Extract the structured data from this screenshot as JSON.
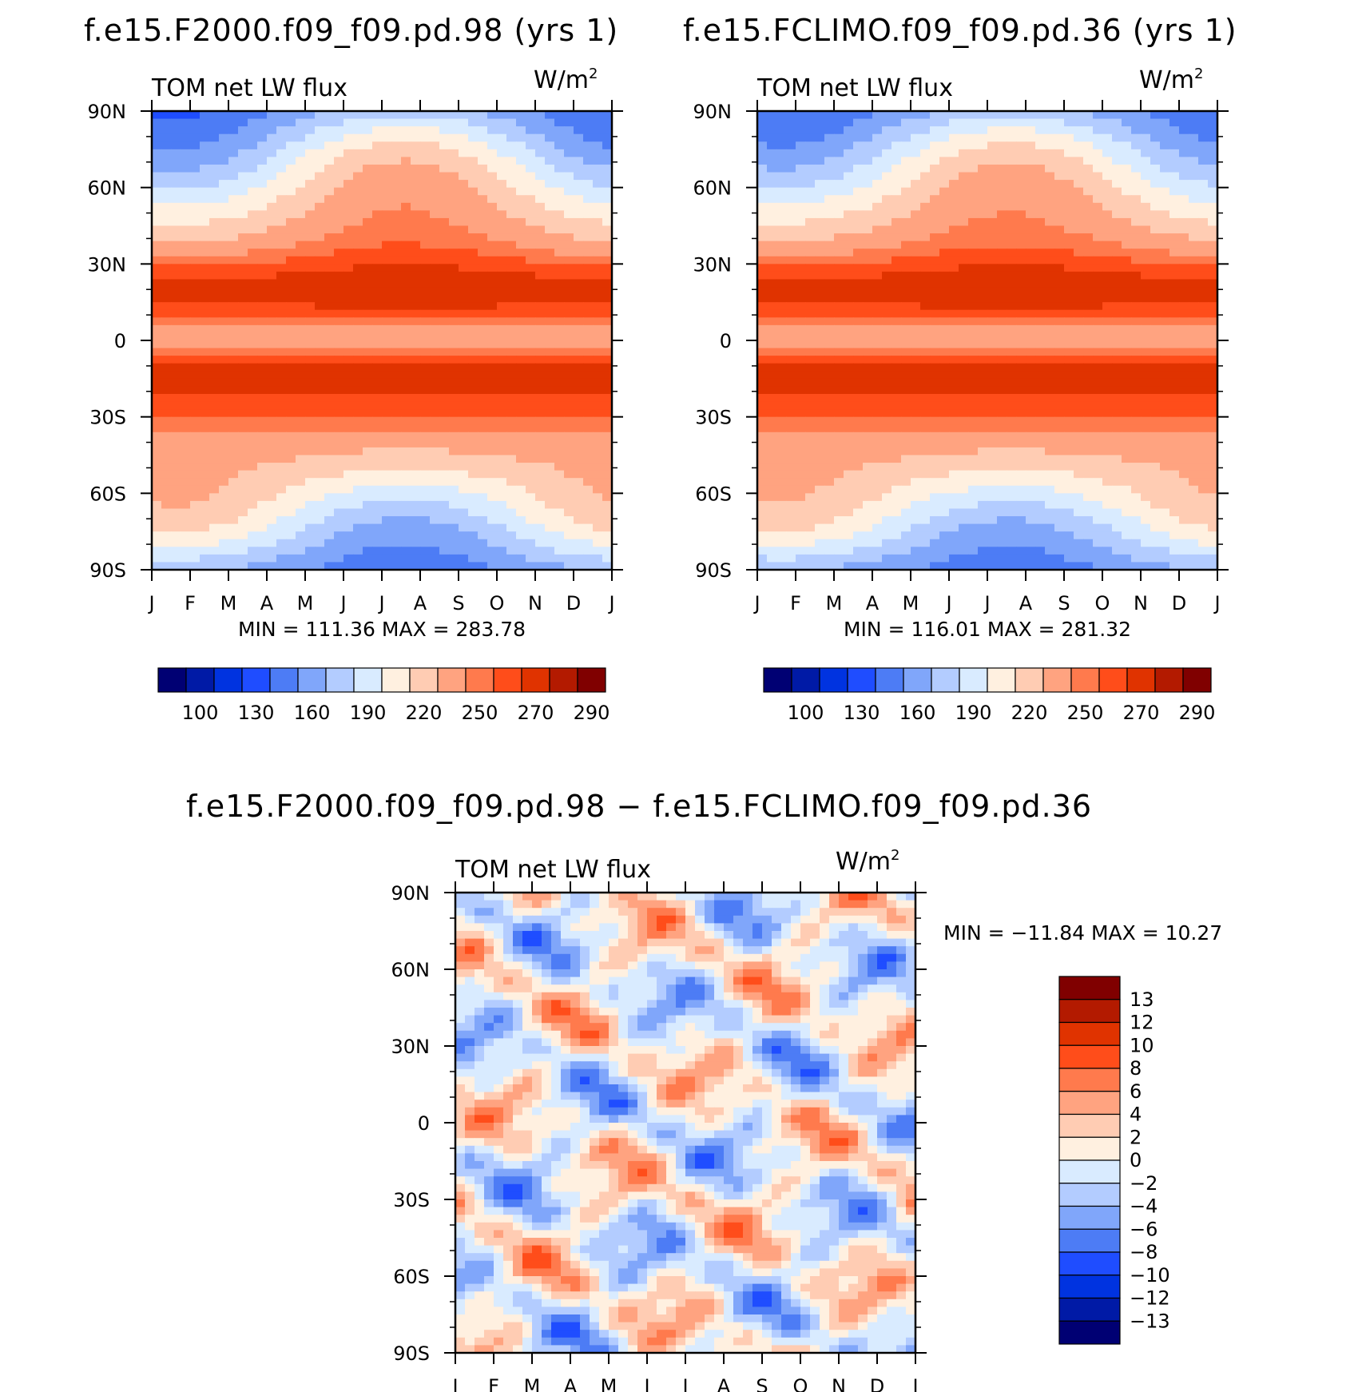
{
  "colors": {
    "absolute_levels": [
      "#000073",
      "#001aa6",
      "#0033e0",
      "#1f4dff",
      "#4d7cf5",
      "#80a6fa",
      "#b3ccff",
      "#d9ebff",
      "#fff0e0",
      "#ffccb3",
      "#ffa380",
      "#ff7a4d",
      "#ff4d1a",
      "#e03300",
      "#b31a00",
      "#800000"
    ],
    "diff_levels": [
      "#000073",
      "#001aa6",
      "#0033e0",
      "#1f4dff",
      "#4d7cf5",
      "#80a6fa",
      "#b3ccff",
      "#d9ebff",
      "#fff0e0",
      "#ffccb3",
      "#ffa380",
      "#ff7a4d",
      "#ff4d1a",
      "#e03300",
      "#b31a00",
      "#800000"
    ]
  },
  "chart_data": [
    {
      "type": "heatmap",
      "panel": "top-left",
      "title": "f.e15.F2000.f09_f09.pd.98 (yrs  1)",
      "left_label": "TOM net LW flux",
      "units_base": "W/m",
      "units_exp": "2",
      "x_ticks": [
        "J",
        "F",
        "M",
        "A",
        "M",
        "J",
        "J",
        "A",
        "S",
        "O",
        "N",
        "D",
        "J"
      ],
      "y_ticks": [
        "90N",
        "60N",
        "30N",
        "0",
        "30S",
        "60S",
        "90S"
      ],
      "ylim": [
        -90,
        90
      ],
      "stats_text": "MIN = 111.36 MAX = 283.78",
      "min": 111.36,
      "max": 283.78,
      "colorbar_labels": [
        "100",
        "130",
        "160",
        "190",
        "220",
        "250",
        "270",
        "290"
      ],
      "seasonal_amp": 1.0
    },
    {
      "type": "heatmap",
      "panel": "top-right",
      "title": "f.e15.FCLIMO.f09_f09.pd.36 (yrs  1)",
      "left_label": "TOM net LW flux",
      "units_base": "W/m",
      "units_exp": "2",
      "x_ticks": [
        "J",
        "F",
        "M",
        "A",
        "M",
        "J",
        "J",
        "A",
        "S",
        "O",
        "N",
        "D",
        "J"
      ],
      "y_ticks": [
        "90N",
        "60N",
        "30N",
        "0",
        "30S",
        "60S",
        "90S"
      ],
      "ylim": [
        -90,
        90
      ],
      "stats_text": "MIN = 116.01 MAX = 281.32",
      "min": 116.01,
      "max": 281.32,
      "colorbar_labels": [
        "100",
        "130",
        "160",
        "190",
        "220",
        "250",
        "270",
        "290"
      ],
      "seasonal_amp": 0.95
    },
    {
      "type": "heatmap",
      "panel": "bottom",
      "title": "f.e15.F2000.f09_f09.pd.98 − f.e15.FCLIMO.f09_f09.pd.36",
      "left_label": "TOM net LW flux",
      "units_base": "W/m",
      "units_exp": "2",
      "x_ticks": [
        "J",
        "F",
        "M",
        "A",
        "M",
        "J",
        "J",
        "A",
        "S",
        "O",
        "N",
        "D",
        "J"
      ],
      "y_ticks": [
        "90N",
        "60N",
        "30N",
        "0",
        "30S",
        "60S",
        "90S"
      ],
      "ylim": [
        -90,
        90
      ],
      "stats_text": "MIN = −11.84 MAX =   10.27",
      "min": -11.84,
      "max": 10.27,
      "colorbar_labels": [
        "13",
        "12",
        "10",
        "8",
        "6",
        "4",
        "2",
        "0",
        "−2",
        "−4",
        "−6",
        "−8",
        "−10",
        "−12",
        "−13"
      ]
    }
  ]
}
